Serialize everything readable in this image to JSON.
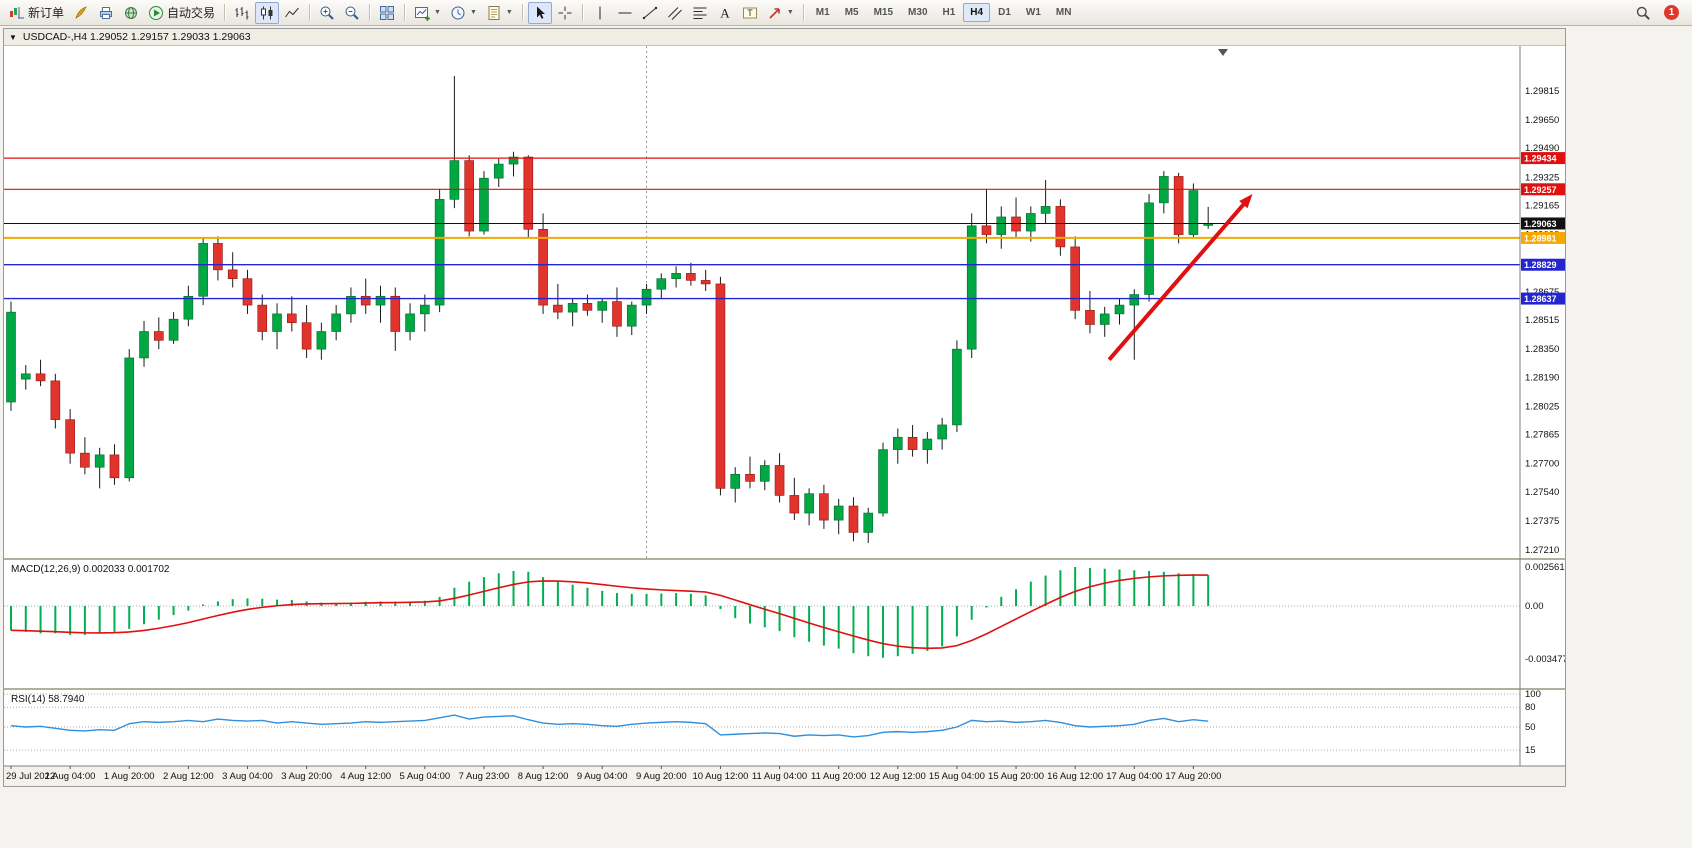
{
  "toolbar": {
    "notification_count": "1",
    "timeframes": [
      "M1",
      "M5",
      "M15",
      "M30",
      "H1",
      "H4",
      "D1",
      "W1",
      "MN"
    ],
    "active_timeframe": "H4",
    "buttons": [
      {
        "name": "new-order-button",
        "icon": "new-order",
        "label": "新订单"
      },
      {
        "name": "metaeditor-button",
        "icon": "quill"
      },
      {
        "name": "print-button",
        "icon": "print"
      },
      {
        "name": "refresh-button",
        "icon": "globe"
      },
      {
        "name": "autotrading-button",
        "icon": "play",
        "label": "自动交易"
      },
      {
        "sep": true
      },
      {
        "name": "bar-chart-button",
        "icon": "bars"
      },
      {
        "name": "candlestick-chart-button",
        "icon": "candles",
        "active": true
      },
      {
        "name": "line-chart-button",
        "icon": "linechart"
      },
      {
        "sep": true
      },
      {
        "name": "zoom-in-button",
        "icon": "zoom-in"
      },
      {
        "name": "zoom-out-button",
        "icon": "zoom-out"
      },
      {
        "sep": true
      },
      {
        "name": "tile-windows-button",
        "icon": "tile"
      },
      {
        "sep": true
      },
      {
        "name": "new-chart-button",
        "icon": "new-chart",
        "dropdown": true
      },
      {
        "name": "periods-button",
        "icon": "clock",
        "dropdown": true
      },
      {
        "name": "templates-button",
        "icon": "template",
        "dropdown": true
      },
      {
        "sep": true
      },
      {
        "name": "cursor-button",
        "icon": "cursor",
        "active": true
      },
      {
        "name": "crosshair-button",
        "icon": "crosshair"
      },
      {
        "sep": true
      },
      {
        "name": "vertical-line-button",
        "icon": "vline"
      },
      {
        "name": "horizontal-line-button",
        "icon": "hline"
      },
      {
        "name": "trendline-button",
        "icon": "trendline"
      },
      {
        "name": "channel-button",
        "icon": "channel"
      },
      {
        "name": "fibonacci-button",
        "icon": "fibonacci"
      },
      {
        "name": "text-button",
        "icon": "text"
      },
      {
        "name": "text-label-button",
        "icon": "text-label"
      },
      {
        "name": "arrows-button",
        "icon": "arrow",
        "dropdown": true
      },
      {
        "sep": true
      }
    ]
  },
  "chart_window": {
    "collapse_glyph": "▼",
    "title": "USDCAD-,H4 1.29052 1.29157 1.29033 1.29063"
  },
  "chart_data": {
    "type": "candlestick",
    "symbol": "USDCAD-",
    "timeframe": "H4",
    "ohlc_current": {
      "open": 1.29052,
      "high": 1.29157,
      "low": 1.29033,
      "close": 1.29063
    },
    "ylim": [
      1.27165,
      1.3007
    ],
    "price_ticks": [
      "1.29815",
      "1.29650",
      "1.29490",
      "1.29325",
      "1.29165",
      "1.29000",
      "1.28840",
      "1.28675",
      "1.28515",
      "1.28350",
      "1.28190",
      "1.28025",
      "1.27865",
      "1.27700",
      "1.27540",
      "1.27375",
      "1.27210"
    ],
    "time_labels": [
      "29 Jul 2022",
      "1 Aug 04:00",
      "1 Aug 20:00",
      "2 Aug 12:00",
      "3 Aug 04:00",
      "3 Aug 20:00",
      "4 Aug 12:00",
      "5 Aug 04:00",
      "7 Aug 23:00",
      "8 Aug 12:00",
      "9 Aug 04:00",
      "9 Aug 20:00",
      "10 Aug 12:00",
      "11 Aug 04:00",
      "11 Aug 20:00",
      "12 Aug 12:00",
      "15 Aug 04:00",
      "15 Aug 20:00",
      "16 Aug 12:00",
      "17 Aug 04:00",
      "17 Aug 20:00"
    ],
    "time_label_step": 4,
    "candles": [
      [
        1.2805,
        1.2862,
        1.28,
        1.2856
      ],
      [
        1.2818,
        1.2826,
        1.2812,
        1.2821
      ],
      [
        1.2821,
        1.2829,
        1.2814,
        1.2817
      ],
      [
        1.2817,
        1.2821,
        1.279,
        1.2795
      ],
      [
        1.2795,
        1.2801,
        1.277,
        1.2776
      ],
      [
        1.2776,
        1.2785,
        1.2764,
        1.2768
      ],
      [
        1.2768,
        1.2779,
        1.2756,
        1.2775
      ],
      [
        1.2775,
        1.2781,
        1.2758,
        1.2762
      ],
      [
        1.2762,
        1.2835,
        1.276,
        1.283
      ],
      [
        1.283,
        1.2851,
        1.2825,
        1.2845
      ],
      [
        1.2845,
        1.2853,
        1.2835,
        1.284
      ],
      [
        1.284,
        1.2856,
        1.2838,
        1.2852
      ],
      [
        1.2852,
        1.2871,
        1.2848,
        1.2865
      ],
      [
        1.2865,
        1.2898,
        1.286,
        1.2895
      ],
      [
        1.2895,
        1.2899,
        1.2874,
        1.288
      ],
      [
        1.288,
        1.289,
        1.287,
        1.2875
      ],
      [
        1.2875,
        1.288,
        1.2855,
        1.286
      ],
      [
        1.286,
        1.2866,
        1.284,
        1.2845
      ],
      [
        1.2845,
        1.2861,
        1.2835,
        1.2855
      ],
      [
        1.2855,
        1.2865,
        1.2845,
        1.285
      ],
      [
        1.285,
        1.286,
        1.283,
        1.2835
      ],
      [
        1.2835,
        1.285,
        1.2829,
        1.2845
      ],
      [
        1.2845,
        1.286,
        1.284,
        1.2855
      ],
      [
        1.2855,
        1.287,
        1.285,
        1.2865
      ],
      [
        1.2865,
        1.2875,
        1.2855,
        1.286
      ],
      [
        1.286,
        1.2871,
        1.285,
        1.2865
      ],
      [
        1.2865,
        1.287,
        1.2834,
        1.2845
      ],
      [
        1.2845,
        1.2861,
        1.284,
        1.2855
      ],
      [
        1.2855,
        1.2866,
        1.2845,
        1.286
      ],
      [
        1.286,
        1.2926,
        1.2856,
        1.292
      ],
      [
        1.292,
        1.299,
        1.2915,
        1.2942
      ],
      [
        1.2942,
        1.2945,
        1.2899,
        1.2902
      ],
      [
        1.2902,
        1.2936,
        1.29,
        1.2932
      ],
      [
        1.2932,
        1.2943,
        1.2927,
        1.294
      ],
      [
        1.294,
        1.2947,
        1.2933,
        1.2944
      ],
      [
        1.2944,
        1.2945,
        1.2898,
        1.2903
      ],
      [
        1.2903,
        1.2912,
        1.2855,
        1.286
      ],
      [
        1.286,
        1.2872,
        1.2852,
        1.2856
      ],
      [
        1.2856,
        1.2864,
        1.2848,
        1.2861
      ],
      [
        1.2861,
        1.2866,
        1.2854,
        1.2857
      ],
      [
        1.2857,
        1.2864,
        1.285,
        1.2862
      ],
      [
        1.2862,
        1.287,
        1.2842,
        1.2848
      ],
      [
        1.2848,
        1.2862,
        1.2843,
        1.286
      ],
      [
        1.286,
        1.2872,
        1.2855,
        1.2869
      ],
      [
        1.2869,
        1.2878,
        1.2864,
        1.2875
      ],
      [
        1.2875,
        1.2882,
        1.287,
        1.2878
      ],
      [
        1.2878,
        1.2884,
        1.2871,
        1.2874
      ],
      [
        1.2874,
        1.288,
        1.2868,
        1.2872
      ],
      [
        1.2872,
        1.2876,
        1.2752,
        1.2756
      ],
      [
        1.2756,
        1.2768,
        1.2748,
        1.2764
      ],
      [
        1.2764,
        1.2774,
        1.2756,
        1.276
      ],
      [
        1.276,
        1.2772,
        1.2755,
        1.2769
      ],
      [
        1.2769,
        1.2776,
        1.2748,
        1.2752
      ],
      [
        1.2752,
        1.2762,
        1.2738,
        1.2742
      ],
      [
        1.2742,
        1.2756,
        1.2735,
        1.2753
      ],
      [
        1.2753,
        1.2758,
        1.2733,
        1.2738
      ],
      [
        1.2738,
        1.275,
        1.273,
        1.2746
      ],
      [
        1.2746,
        1.2751,
        1.2726,
        1.2731
      ],
      [
        1.2731,
        1.2745,
        1.2725,
        1.2742
      ],
      [
        1.2742,
        1.2782,
        1.274,
        1.2778
      ],
      [
        1.2778,
        1.279,
        1.277,
        1.2785
      ],
      [
        1.2785,
        1.2792,
        1.2774,
        1.2778
      ],
      [
        1.2778,
        1.2788,
        1.277,
        1.2784
      ],
      [
        1.2784,
        1.2796,
        1.2778,
        1.2792
      ],
      [
        1.2792,
        1.284,
        1.2788,
        1.2835
      ],
      [
        1.2835,
        1.2912,
        1.283,
        1.2905
      ],
      [
        1.2905,
        1.2926,
        1.2895,
        1.29
      ],
      [
        1.29,
        1.2916,
        1.2892,
        1.291
      ],
      [
        1.291,
        1.2921,
        1.2898,
        1.2902
      ],
      [
        1.2902,
        1.2916,
        1.2896,
        1.2912
      ],
      [
        1.2912,
        1.2931,
        1.2906,
        1.2916
      ],
      [
        1.2916,
        1.292,
        1.2888,
        1.2893
      ],
      [
        1.2893,
        1.2899,
        1.2852,
        1.2857
      ],
      [
        1.2857,
        1.2868,
        1.2844,
        1.2849
      ],
      [
        1.2849,
        1.2859,
        1.2842,
        1.2855
      ],
      [
        1.2855,
        1.2864,
        1.2849,
        1.286
      ],
      [
        1.286,
        1.2869,
        1.2829,
        1.2866
      ],
      [
        1.2866,
        1.2923,
        1.2862,
        1.2918
      ],
      [
        1.2918,
        1.2936,
        1.2912,
        1.2933
      ],
      [
        1.2933,
        1.2935,
        1.2895,
        1.29
      ],
      [
        1.29,
        1.2929,
        1.2898,
        1.2925
      ],
      [
        1.29052,
        1.29157,
        1.29033,
        1.29063
      ]
    ],
    "hlines": [
      {
        "price": 1.29434,
        "label": "1.29434",
        "color": "#e01010",
        "width": 1.2
      },
      {
        "price": 1.29257,
        "label": "1.29257",
        "color": "#e01010",
        "width": 1.2
      },
      {
        "price": 1.29063,
        "label": "1.29063",
        "color": "#111111",
        "width": 1
      },
      {
        "price": 1.28981,
        "label": "1.28981",
        "color": "#f5a800",
        "width": 2
      },
      {
        "price": 1.28829,
        "label": "1.28829",
        "color": "#2525d0",
        "width": 1.4
      },
      {
        "price": 1.28637,
        "label": "1.28637",
        "color": "#2525d0",
        "width": 1.4
      }
    ],
    "trend_arrow": {
      "from_index": 74.3,
      "from_price": 1.2829,
      "to_index": 84.0,
      "to_price": 1.2923,
      "color": "#e01010"
    },
    "separator_index": 43,
    "shift_marker_index": 82,
    "macd": {
      "label": "MACD(12,26,9)",
      "value": "0.002033",
      "signal": "0.001702",
      "axis_labels": [
        "0.002561",
        "0.00",
        "-0.003477"
      ],
      "axis_values": [
        0.002561,
        0,
        -0.003477
      ],
      "histogram_color": "#00b050",
      "signal_color": "#e01010",
      "values": [
        -0.0016,
        -0.0017,
        -0.0018,
        -0.0018,
        -0.0019,
        -0.0019,
        -0.0018,
        -0.0017,
        -0.0015,
        -0.0012,
        -0.0009,
        -0.0006,
        -0.0003,
        0.0001,
        0.0003,
        0.00045,
        0.0005,
        0.00048,
        0.00042,
        0.0004,
        0.0003,
        0.00022,
        0.0002,
        0.00022,
        0.00028,
        0.0003,
        0.00028,
        0.0003,
        0.00035,
        0.0006,
        0.0012,
        0.0016,
        0.0019,
        0.00215,
        0.0023,
        0.00225,
        0.0019,
        0.0016,
        0.0014,
        0.0012,
        0.001,
        0.00085,
        0.0008,
        0.0008,
        0.00082,
        0.00085,
        0.0008,
        0.0007,
        -0.0002,
        -0.0008,
        -0.00115,
        -0.0014,
        -0.00165,
        -0.00205,
        -0.00235,
        -0.0026,
        -0.0028,
        -0.0031,
        -0.0033,
        -0.0034,
        -0.0033,
        -0.00315,
        -0.00295,
        -0.00265,
        -0.002,
        -0.0009,
        -0.0001,
        0.0006,
        0.0011,
        0.0016,
        0.002,
        0.00235,
        0.00256,
        0.0025,
        0.00245,
        0.0024,
        0.00235,
        0.0023,
        0.00225,
        0.00215,
        0.0021,
        0.00203
      ]
    },
    "rsi": {
      "label": "RSI(14)",
      "value": "58.7940",
      "levels": [
        100,
        80,
        50,
        15
      ],
      "line_color": "#2f8fdd",
      "values": [
        52,
        50,
        51,
        48,
        45,
        44,
        46,
        45,
        55,
        58,
        57,
        58,
        60,
        58,
        62,
        60,
        59,
        60,
        56,
        58,
        56,
        54,
        55,
        56,
        58,
        57,
        58,
        59,
        60,
        64,
        68,
        62,
        65,
        66,
        67,
        61,
        56,
        54,
        55,
        54,
        52,
        51,
        54,
        56,
        57,
        58,
        57,
        55,
        38,
        39,
        40,
        41,
        40,
        36,
        38,
        37,
        38,
        35,
        37,
        42,
        43,
        42,
        43,
        45,
        50,
        60,
        58,
        59,
        57,
        58,
        60,
        57,
        52,
        50,
        51,
        52,
        54,
        60,
        63,
        58,
        61,
        58.79
      ]
    },
    "colors": {
      "up": "#00a843",
      "down": "#e0342c",
      "wick": "#1a1a1a",
      "background": "#ffffff"
    }
  }
}
